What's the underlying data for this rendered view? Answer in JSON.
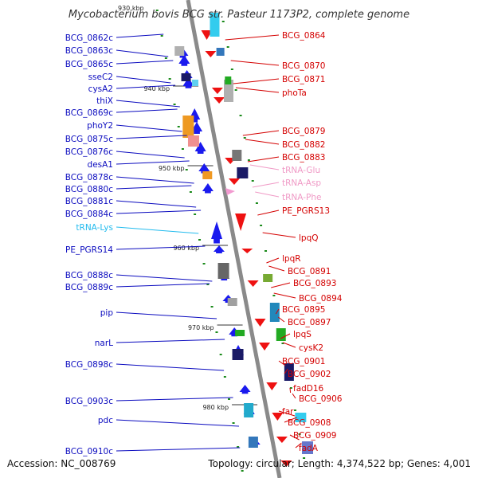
{
  "title": "Mycobacterium bovis BCG str. Pasteur 1173P2, complete genome",
  "top_scale_partial": "930 kbp",
  "accession_text": "Accession: NC_008769",
  "topology_text": "Topology: circular; Length: 4,374,522 bp; Genes: 4,001",
  "colors": {
    "reverse_label": "#0b0bbf",
    "forward_label": "#d40000",
    "trna_label": "#f09ac6",
    "trna_lys_label": "#22bbee",
    "backbone": "#8a8a8a",
    "tick": "#1a8a1a"
  },
  "scale_labels": [
    "940 kbp",
    "950 kbp",
    "960 kbp",
    "970 kbp",
    "980 kbp"
  ],
  "left_labels": [
    "BCG_0862c",
    "BCG_0863c",
    "BCG_0865c",
    "sseC2",
    "cysA2",
    "thiX",
    "BCG_0869c",
    "phoY2",
    "BCG_0875c",
    "BCG_0876c",
    "desA1",
    "BCG_0878c",
    "BCG_0880c",
    "BCG_0881c",
    "BCG_0884c",
    "tRNA-Lys",
    "PE_PGRS14",
    "BCG_0888c",
    "BCG_0889c",
    "pip",
    "narL",
    "BCG_0898c",
    "BCG_0903c",
    "pdc",
    "BCG_0910c"
  ],
  "right_labels": [
    "BCG_0864",
    "BCG_0870",
    "BCG_0871",
    "phoTa",
    "BCG_0879",
    "BCG_0882",
    "BCG_0883",
    "tRNA-Glu",
    "tRNA-Asp",
    "tRNA-Phe",
    "PE_PGRS13",
    "lpqQ",
    "lpqR",
    "BCG_0891",
    "BCG_0893",
    "BCG_0894",
    "BCG_0895",
    "BCG_0897",
    "lpqS",
    "cysK2",
    "BCG_0901",
    "BCG_0902",
    "fadD16",
    "BCG_0906",
    "far",
    "BCG_0908",
    "BCG_0909",
    "fadA"
  ]
}
